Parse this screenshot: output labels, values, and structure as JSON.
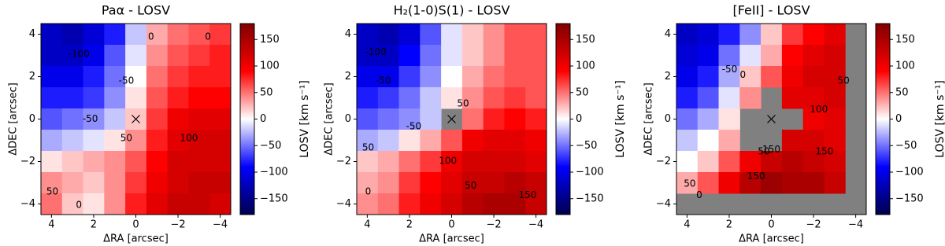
{
  "chart_data": [
    {
      "type": "heatmap",
      "title": "Paα - LOSV",
      "xlabel": "ΔRA [arcsec]",
      "ylabel": "ΔDEC [arcsec]",
      "x": [
        4,
        3,
        2,
        1,
        0,
        -1,
        -2,
        -3,
        -4
      ],
      "y": [
        4,
        3,
        2,
        1,
        0,
        -1,
        -2,
        -3,
        -4
      ],
      "values": [
        [
          -120,
          -130,
          -110,
          -80,
          -20,
          30,
          50,
          60,
          70
        ],
        [
          -120,
          -120,
          -100,
          -60,
          -10,
          40,
          60,
          70,
          80
        ],
        [
          -100,
          -100,
          -80,
          -50,
          0,
          50,
          70,
          80,
          80
        ],
        [
          -80,
          -80,
          -70,
          -40,
          10,
          60,
          80,
          90,
          90
        ],
        [
          -60,
          -50,
          -40,
          -20,
          20,
          70,
          100,
          110,
          110
        ],
        [
          -30,
          -20,
          -10,
          10,
          40,
          80,
          110,
          120,
          120
        ],
        [
          10,
          20,
          30,
          40,
          60,
          90,
          120,
          120,
          120
        ],
        [
          40,
          30,
          20,
          40,
          70,
          100,
          120,
          130,
          130
        ],
        [
          50,
          20,
          10,
          40,
          80,
          110,
          130,
          130,
          120
        ]
      ],
      "xlim": [
        4.5,
        -4.5
      ],
      "ylim": [
        -4.5,
        4.5
      ],
      "xticks": [
        4,
        2,
        0,
        {
          "value": -2,
          "label": "−2"
        },
        {
          "value": -4,
          "label": "−4"
        }
      ],
      "yticks": [
        4,
        2,
        0,
        {
          "value": -2,
          "label": "−2"
        },
        {
          "value": -4,
          "label": "−4"
        }
      ],
      "colorbar": {
        "label": "LOSV [km s⁻¹]",
        "colormap": "seismic",
        "lim": [
          -180,
          180
        ],
        "ticks": [
          {
            "value": -150,
            "label": "−150"
          },
          {
            "value": -100,
            "label": "−100"
          },
          {
            "value": -50,
            "label": "−50"
          },
          0,
          50,
          100,
          150
        ]
      },
      "annotations": [
        "-100",
        "-50",
        "0",
        "0",
        "-50",
        "50",
        "100",
        "50",
        "0"
      ]
    },
    {
      "type": "heatmap",
      "title": "H₂(1-0)S(1) - LOSV",
      "xlabel": "ΔRA [arcsec]",
      "ylabel": "ΔDEC [arcsec]",
      "x": [
        4,
        3,
        2,
        1,
        0,
        -1,
        -2,
        -3,
        -4
      ],
      "y": [
        4,
        3,
        2,
        1,
        0,
        -1,
        -2,
        -3,
        -4
      ],
      "values": [
        [
          -120,
          -130,
          -110,
          -60,
          -10,
          20,
          40,
          60,
          60
        ],
        [
          -120,
          -120,
          -90,
          -50,
          -10,
          20,
          40,
          60,
          60
        ],
        [
          -100,
          -100,
          -70,
          -40,
          0,
          30,
          50,
          60,
          60
        ],
        [
          -80,
          -70,
          -50,
          -20,
          10,
          40,
          60,
          70,
          60
        ],
        [
          -60,
          -50,
          -40,
          -20,
          null,
          50,
          80,
          90,
          80
        ],
        [
          -30,
          -20,
          10,
          30,
          60,
          100,
          110,
          110,
          100
        ],
        [
          20,
          30,
          50,
          70,
          100,
          120,
          120,
          120,
          110
        ],
        [
          30,
          40,
          70,
          90,
          110,
          130,
          130,
          140,
          130
        ],
        [
          40,
          50,
          80,
          100,
          120,
          140,
          150,
          150,
          130
        ]
      ],
      "xlim": [
        4.5,
        -4.5
      ],
      "ylim": [
        -4.5,
        4.5
      ],
      "xticks": [
        4,
        2,
        0,
        {
          "value": -2,
          "label": "−2"
        },
        {
          "value": -4,
          "label": "−4"
        }
      ],
      "yticks": [
        4,
        2,
        0,
        {
          "value": -2,
          "label": "−2"
        },
        {
          "value": -4,
          "label": "−4"
        }
      ],
      "colorbar": {
        "label": "LOSV [km s⁻¹]",
        "colormap": "seismic",
        "lim": [
          -180,
          180
        ],
        "ticks": [
          {
            "value": -150,
            "label": "−150"
          },
          {
            "value": -100,
            "label": "−100"
          },
          {
            "value": -50,
            "label": "−50"
          },
          0,
          50,
          100,
          150
        ]
      },
      "annotations": [
        "-100",
        "-50",
        "-50",
        "50",
        "0",
        "50",
        "100",
        "50",
        "150"
      ]
    },
    {
      "type": "heatmap",
      "title": "[FeII] - LOSV",
      "xlabel": "ΔRA [arcsec]",
      "ylabel": "ΔDEC [arcsec]",
      "x": [
        4,
        3,
        2,
        1,
        0,
        -1,
        -2,
        -3,
        -4
      ],
      "y": [
        4,
        3,
        2,
        1,
        0,
        -1,
        -2,
        -3,
        -4
      ],
      "values": [
        [
          -120,
          -110,
          -80,
          -40,
          20,
          70,
          90,
          110,
          null
        ],
        [
          -110,
          -100,
          -50,
          -10,
          30,
          90,
          110,
          120,
          null
        ],
        [
          -100,
          -80,
          -30,
          20,
          60,
          100,
          120,
          120,
          null
        ],
        [
          -80,
          -60,
          -10,
          40,
          null,
          110,
          110,
          120,
          null
        ],
        [
          -50,
          -30,
          10,
          null,
          null,
          null,
          100,
          110,
          null
        ],
        [
          -20,
          0,
          30,
          null,
          null,
          120,
          120,
          110,
          null
        ],
        [
          0,
          20,
          60,
          100,
          130,
          140,
          130,
          120,
          null
        ],
        [
          30,
          60,
          100,
          140,
          160,
          150,
          150,
          130,
          null
        ],
        [
          null,
          null,
          null,
          null,
          null,
          null,
          null,
          null,
          null
        ]
      ],
      "xlim": [
        4.5,
        -4.5
      ],
      "ylim": [
        -4.5,
        4.5
      ],
      "xticks": [
        4,
        2,
        0,
        {
          "value": -2,
          "label": "−2"
        },
        {
          "value": -4,
          "label": "−4"
        }
      ],
      "yticks": [
        4,
        2,
        0,
        {
          "value": -2,
          "label": "−2"
        },
        {
          "value": -4,
          "label": "−4"
        }
      ],
      "colorbar": {
        "label": "LOSV [km s⁻¹]",
        "colormap": "seismic",
        "lim": [
          -180,
          180
        ],
        "ticks": [
          {
            "value": -150,
            "label": "−150"
          },
          {
            "value": -100,
            "label": "−100"
          },
          {
            "value": -50,
            "label": "−50"
          },
          0,
          50,
          100,
          150
        ]
      },
      "annotations": [
        "-50",
        "50",
        "0",
        "100",
        "50",
        "150",
        "150",
        "150",
        "0",
        "50"
      ]
    }
  ]
}
